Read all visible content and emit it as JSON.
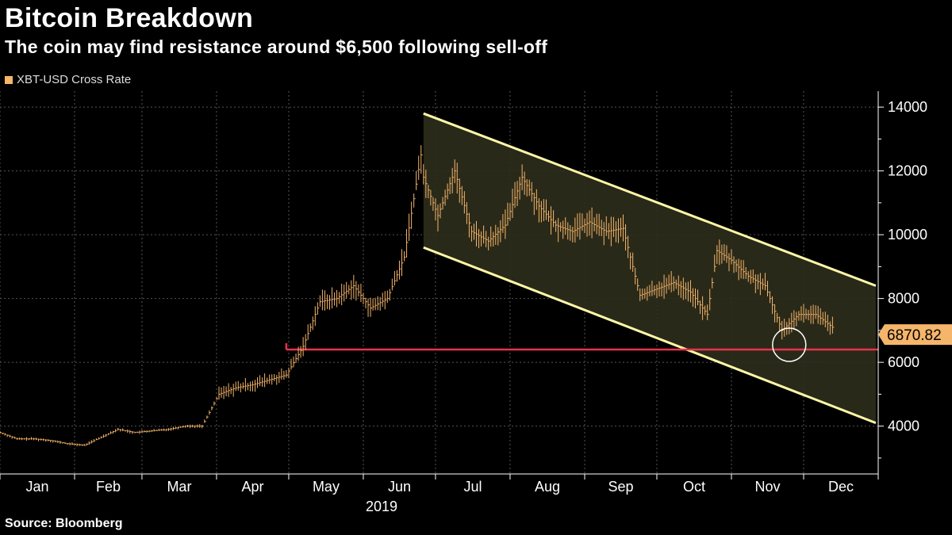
{
  "title": "Bitcoin Breakdown",
  "subtitle": "The coin may find resistance around $6,500 following sell-off",
  "source": "Source: Bloomberg",
  "colors": {
    "series": "#f5b56a",
    "support": "#e8334b",
    "channel": "#fff7a8",
    "channel_fill": "#2e2e1c",
    "last_label": "#f5b56a"
  },
  "chart_data": {
    "type": "line",
    "series": [
      {
        "name": "XBT-USD Cross Rate"
      }
    ],
    "legend_position": "top-left",
    "grid": true,
    "x": [
      "2019-01-01",
      "2019-01-08",
      "2019-01-15",
      "2019-01-22",
      "2019-01-29",
      "2019-02-05",
      "2019-02-12",
      "2019-02-19",
      "2019-02-26",
      "2019-03-05",
      "2019-03-12",
      "2019-03-19",
      "2019-03-26",
      "2019-04-02",
      "2019-04-09",
      "2019-04-16",
      "2019-04-23",
      "2019-04-30",
      "2019-05-07",
      "2019-05-14",
      "2019-05-21",
      "2019-05-28",
      "2019-06-04",
      "2019-06-11",
      "2019-06-18",
      "2019-06-25",
      "2019-06-26",
      "2019-07-02",
      "2019-07-09",
      "2019-07-16",
      "2019-07-23",
      "2019-07-30",
      "2019-08-06",
      "2019-08-13",
      "2019-08-20",
      "2019-08-27",
      "2019-09-03",
      "2019-09-10",
      "2019-09-17",
      "2019-09-24",
      "2019-10-01",
      "2019-10-08",
      "2019-10-15",
      "2019-10-22",
      "2019-10-26",
      "2019-11-01",
      "2019-11-08",
      "2019-11-15",
      "2019-11-22",
      "2019-11-29",
      "2019-12-06",
      "2019-12-13"
    ],
    "y": [
      3800,
      3600,
      3600,
      3550,
      3450,
      3400,
      3650,
      3900,
      3800,
      3850,
      3900,
      4000,
      4000,
      5000,
      5200,
      5300,
      5450,
      5600,
      6500,
      7900,
      8000,
      8400,
      7700,
      8000,
      9300,
      12500,
      11800,
      10600,
      12000,
      10100,
      9800,
      10300,
      11800,
      10900,
      10300,
      10100,
      10400,
      10100,
      10200,
      8100,
      8300,
      8500,
      8200,
      7500,
      9500,
      9200,
      8700,
      8400,
      7000,
      7500,
      7500,
      7100
    ],
    "ylim": [
      2500,
      14500
    ],
    "yticks": [
      4000,
      6000,
      8000,
      10000,
      12000,
      14000
    ],
    "xticks": [
      "Jan",
      "Feb",
      "Mar",
      "Apr",
      "May",
      "Jun",
      "Jul",
      "Aug",
      "Sep",
      "Oct",
      "Nov",
      "Dec"
    ],
    "xlabel": "2019",
    "last_value": "6870.82",
    "support_level": 6400,
    "support_start": "2019-04-30",
    "channel_upper": [
      {
        "x": "2019-06-26",
        "y": 13800
      },
      {
        "x": "2019-12-31",
        "y": 8400
      }
    ],
    "channel_lower": [
      {
        "x": "2019-06-26",
        "y": 9600
      },
      {
        "x": "2019-12-31",
        "y": 4100
      }
    ],
    "highlight": {
      "x": "2019-11-25",
      "y": 6550
    }
  }
}
